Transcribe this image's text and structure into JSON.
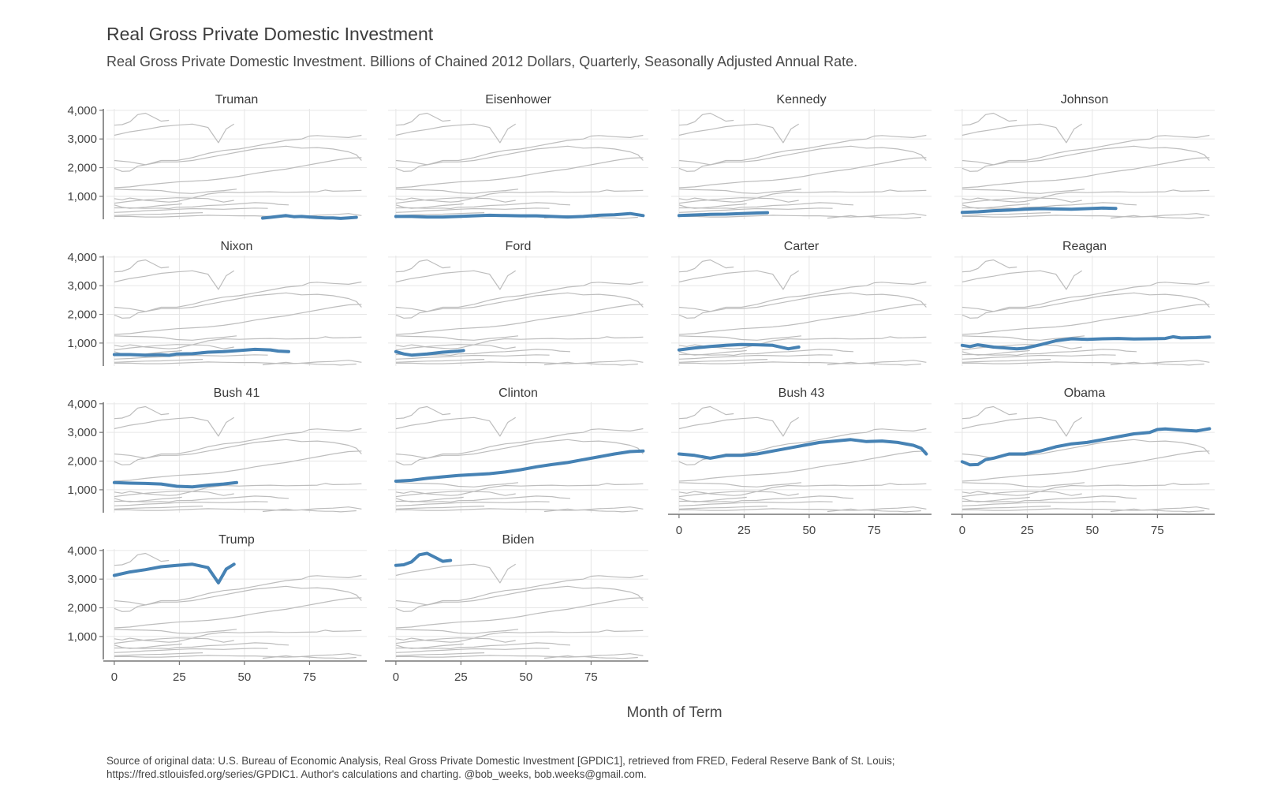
{
  "title": "Real Gross Private Domestic Investment",
  "subtitle": "Real Gross Private Domestic Investment. Billions of Chained 2012 Dollars, Quarterly, Seasonally Adjusted Annual Rate.",
  "caption_line1": "Source of original data: U.S. Bureau of Economic Analysis, Real Gross Private Domestic Investment [GPDIC1], retrieved from FRED, Federal Reserve Bank of St. Louis;",
  "caption_line2": "https://fred.stlouisfed.org/series/GPDIC1. Author's calculations and charting. @bob_weeks, bob.weeks@gmail.com.",
  "colors": {
    "highlight": "#4682b4",
    "background_lines": "#bdbdbd",
    "grid": "#e6e6e6",
    "axis": "#777777"
  },
  "chart_data": {
    "type": "line",
    "facet_layout": "4 columns x 4 rows",
    "xlabel": "Month of Term",
    "ylabel": "",
    "xlim": [
      -3,
      97
    ],
    "ylim": [
      200,
      4050
    ],
    "x_ticks": [
      0,
      25,
      50,
      75
    ],
    "x_tick_labels": [
      "0",
      "25",
      "50",
      "75"
    ],
    "y_ticks": [
      1000,
      2000,
      3000,
      4000
    ],
    "y_tick_labels": [
      "1,000",
      "2,000",
      "3,000",
      "4,000"
    ],
    "grid": true,
    "legend": "none",
    "series": [
      {
        "name": "Truman",
        "x": [
          57,
          60,
          63,
          66,
          69,
          72,
          75,
          78,
          81,
          84,
          87,
          90,
          93
        ],
        "y": [
          240,
          270,
          300,
          330,
          290,
          300,
          280,
          260,
          250,
          250,
          230,
          250,
          270
        ]
      },
      {
        "name": "Eisenhower",
        "x": [
          0,
          6,
          12,
          18,
          24,
          30,
          36,
          42,
          48,
          54,
          60,
          66,
          72,
          78,
          84,
          90,
          95
        ],
        "y": [
          300,
          300,
          280,
          280,
          300,
          320,
          340,
          330,
          320,
          320,
          300,
          280,
          300,
          340,
          360,
          400,
          330
        ]
      },
      {
        "name": "Kennedy",
        "x": [
          0,
          6,
          12,
          18,
          24,
          30,
          34
        ],
        "y": [
          330,
          350,
          370,
          380,
          400,
          420,
          430
        ]
      },
      {
        "name": "Johnson",
        "x": [
          0,
          6,
          12,
          18,
          24,
          30,
          36,
          42,
          48,
          54,
          59
        ],
        "y": [
          440,
          460,
          500,
          520,
          550,
          570,
          560,
          550,
          570,
          590,
          580
        ]
      },
      {
        "name": "Nixon",
        "x": [
          0,
          6,
          12,
          18,
          21,
          24,
          30,
          36,
          42,
          48,
          54,
          60,
          63,
          67
        ],
        "y": [
          600,
          600,
          580,
          590,
          570,
          620,
          630,
          680,
          700,
          740,
          780,
          760,
          720,
          700
        ]
      },
      {
        "name": "Ford",
        "x": [
          0,
          3,
          6,
          12,
          18,
          24,
          26
        ],
        "y": [
          700,
          620,
          580,
          620,
          680,
          720,
          740
        ]
      },
      {
        "name": "Carter",
        "x": [
          0,
          6,
          12,
          18,
          24,
          30,
          36,
          42,
          46
        ],
        "y": [
          760,
          830,
          880,
          920,
          950,
          940,
          920,
          800,
          860
        ]
      },
      {
        "name": "Reagan",
        "x": [
          0,
          3,
          6,
          9,
          12,
          15,
          18,
          21,
          24,
          30,
          36,
          42,
          48,
          54,
          60,
          66,
          72,
          78,
          81,
          84,
          90,
          95
        ],
        "y": [
          920,
          880,
          940,
          900,
          860,
          840,
          820,
          800,
          820,
          940,
          1080,
          1150,
          1130,
          1150,
          1160,
          1140,
          1150,
          1160,
          1220,
          1180,
          1190,
          1210
        ]
      },
      {
        "name": "Bush 41",
        "x": [
          0,
          6,
          12,
          18,
          24,
          30,
          36,
          42,
          47
        ],
        "y": [
          1250,
          1230,
          1220,
          1200,
          1120,
          1100,
          1160,
          1200,
          1250
        ]
      },
      {
        "name": "Clinton",
        "x": [
          0,
          6,
          12,
          18,
          24,
          30,
          36,
          42,
          48,
          54,
          60,
          66,
          72,
          78,
          84,
          90,
          95
        ],
        "y": [
          1300,
          1330,
          1400,
          1450,
          1500,
          1530,
          1560,
          1620,
          1700,
          1800,
          1880,
          1950,
          2050,
          2150,
          2250,
          2330,
          2350
        ]
      },
      {
        "name": "Bush 43",
        "x": [
          0,
          6,
          12,
          18,
          24,
          30,
          36,
          42,
          48,
          54,
          60,
          66,
          72,
          78,
          84,
          90,
          93,
          95
        ],
        "y": [
          2250,
          2200,
          2100,
          2200,
          2200,
          2250,
          2350,
          2450,
          2550,
          2650,
          2700,
          2750,
          2680,
          2700,
          2650,
          2550,
          2450,
          2250
        ]
      },
      {
        "name": "Obama",
        "x": [
          0,
          3,
          6,
          9,
          12,
          18,
          24,
          30,
          36,
          42,
          48,
          54,
          60,
          66,
          72,
          75,
          78,
          84,
          90,
          95
        ],
        "y": [
          1980,
          1870,
          1880,
          2050,
          2100,
          2250,
          2250,
          2350,
          2500,
          2600,
          2650,
          2750,
          2850,
          2950,
          3000,
          3100,
          3120,
          3080,
          3050,
          3130
        ]
      },
      {
        "name": "Trump",
        "x": [
          0,
          6,
          12,
          18,
          24,
          30,
          36,
          40,
          43,
          46
        ],
        "y": [
          3130,
          3250,
          3330,
          3430,
          3480,
          3520,
          3400,
          2870,
          3350,
          3520
        ]
      },
      {
        "name": "Biden",
        "x": [
          0,
          3,
          6,
          9,
          12,
          15,
          18,
          21
        ],
        "y": [
          3480,
          3500,
          3600,
          3850,
          3900,
          3760,
          3620,
          3650
        ]
      }
    ]
  }
}
